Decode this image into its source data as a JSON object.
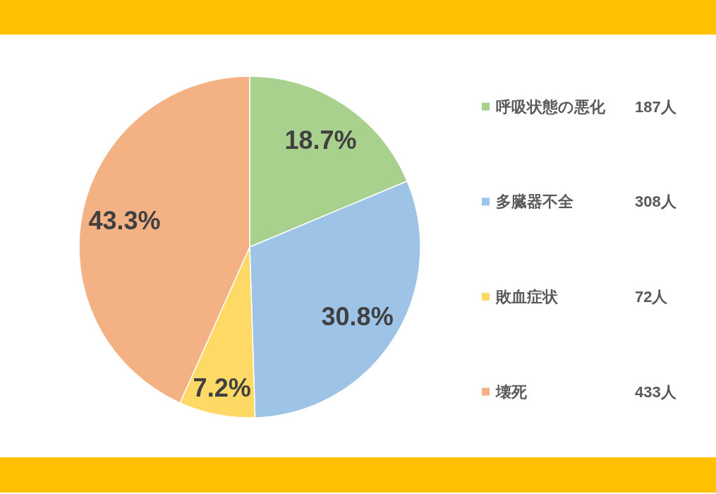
{
  "chart_data": {
    "type": "pie",
    "categories": [
      "呼吸状態の悪化",
      "多臓器不全",
      "敗血症状",
      "壊死"
    ],
    "values": [
      18.7,
      30.8,
      7.2,
      43.3
    ],
    "colors": [
      "#a9d18e",
      "#9dc3e6",
      "#ffd966",
      "#f4b183"
    ],
    "value_labels": [
      "18.7%",
      "30.8%",
      "7.2%",
      "43.3%"
    ],
    "legend": "right",
    "annotations": [
      "187人",
      "308人",
      "72人",
      "433人"
    ]
  }
}
